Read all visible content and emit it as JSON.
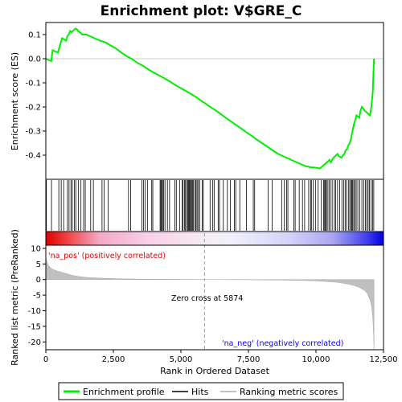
{
  "chart_data": {
    "type": "line",
    "title": "Enrichment plot: V$GRE_C",
    "es_panel": {
      "ylabel": "Enrichment score (ES)",
      "ylim": [
        -0.5,
        0.15
      ],
      "yticks": [
        0.1,
        0.0,
        -0.1,
        -0.2,
        -0.3,
        -0.4
      ],
      "ytick_labels": [
        "0.1",
        "0.0",
        "-0.1",
        "-0.2",
        "-0.3",
        "-0.4"
      ],
      "series": [
        {
          "name": "Enrichment profile",
          "color": "#00ee00",
          "x": [
            0,
            200,
            250,
            450,
            520,
            600,
            750,
            800,
            850,
            900,
            950,
            1050,
            1100,
            1150,
            1200,
            1350,
            1500,
            1600,
            1800,
            2000,
            2200,
            2400,
            2600,
            2800,
            3000,
            3200,
            3400,
            3600,
            3800,
            4000,
            4200,
            4400,
            4600,
            4800,
            5000,
            5200,
            5400,
            5600,
            5800,
            6000,
            6200,
            6400,
            6600,
            6800,
            7000,
            7200,
            7400,
            7600,
            7800,
            8000,
            8200,
            8400,
            8600,
            8800,
            9000,
            9200,
            9400,
            9600,
            9800,
            10000,
            10150,
            10250,
            10300,
            10350,
            10400,
            10450,
            10500,
            10550,
            10650,
            10700,
            10750,
            10800,
            10850,
            10950,
            11000,
            11050,
            11100,
            11150,
            11200,
            11250,
            11300,
            11350,
            11400,
            11450,
            11500,
            11600,
            11650,
            11700,
            11800,
            12000,
            12050,
            12100,
            12130,
            12150
          ],
          "y": [
            0.0,
            -0.01,
            0.035,
            0.025,
            0.055,
            0.085,
            0.075,
            0.095,
            0.1,
            0.115,
            0.11,
            0.12,
            0.125,
            0.122,
            0.115,
            0.1,
            0.1,
            0.095,
            0.085,
            0.075,
            0.068,
            0.055,
            0.042,
            0.025,
            0.01,
            -0.002,
            -0.018,
            -0.03,
            -0.045,
            -0.058,
            -0.07,
            -0.082,
            -0.095,
            -0.11,
            -0.122,
            -0.135,
            -0.148,
            -0.162,
            -0.178,
            -0.193,
            -0.208,
            -0.223,
            -0.24,
            -0.256,
            -0.272,
            -0.287,
            -0.303,
            -0.318,
            -0.335,
            -0.35,
            -0.365,
            -0.38,
            -0.395,
            -0.405,
            -0.415,
            -0.425,
            -0.435,
            -0.445,
            -0.45,
            -0.452,
            -0.455,
            -0.445,
            -0.44,
            -0.435,
            -0.43,
            -0.425,
            -0.42,
            -0.43,
            -0.41,
            -0.405,
            -0.4,
            -0.395,
            -0.405,
            -0.41,
            -0.4,
            -0.395,
            -0.38,
            -0.375,
            -0.36,
            -0.35,
            -0.33,
            -0.3,
            -0.275,
            -0.255,
            -0.235,
            -0.245,
            -0.215,
            -0.2,
            -0.215,
            -0.235,
            -0.2,
            -0.14,
            -0.05,
            0.0
          ]
        }
      ]
    },
    "hits": [
      20,
      210,
      480,
      570,
      660,
      800,
      860,
      930,
      980,
      1060,
      1110,
      1210,
      1300,
      1400,
      1460,
      1660,
      1760,
      2080,
      2160,
      2310,
      3060,
      3140,
      3560,
      3620,
      3680,
      3760,
      3920,
      3960,
      4230,
      4260,
      4290,
      4320,
      4360,
      4410,
      4500,
      4580,
      4780,
      4830,
      4950,
      5050,
      5080,
      5130,
      5170,
      5210,
      5250,
      5280,
      5310,
      5340,
      5380,
      5410,
      5440,
      5470,
      5530,
      5560,
      5600,
      5640,
      5700,
      5790,
      5830,
      6080,
      6180,
      6230,
      6380,
      6430,
      6570,
      6720,
      6830,
      6980,
      7030,
      7180,
      7430,
      7680,
      7730,
      8230,
      8380,
      8730,
      8830,
      8910,
      8960,
      9180,
      9230,
      9380,
      9500,
      9580,
      9730,
      9800,
      9830,
      9900,
      9980,
      10080,
      10200,
      10280,
      10320,
      10350,
      10380,
      10420,
      10480,
      10530,
      10600,
      10680,
      10730,
      10800,
      10880,
      10960,
      11030,
      11080,
      11130,
      11200,
      11250,
      11300,
      11330,
      11360,
      11400,
      11440,
      11490,
      11550,
      11620,
      11700,
      11770,
      11830,
      11880,
      11930,
      11980,
      12040,
      12100,
      12140
    ],
    "metric_panel": {
      "ylabel": "Ranked list metric (PreRanked)",
      "ylim": [
        -22.5,
        11
      ],
      "yticks": [
        10,
        5,
        0,
        -5,
        -10,
        -15,
        -20
      ],
      "ytick_labels": [
        "10",
        "5",
        "0",
        "-5",
        "-10",
        "-15",
        "-20"
      ],
      "x": [
        0,
        30,
        80,
        150,
        250,
        400,
        600,
        800,
        1000,
        1200,
        1500,
        2000,
        2500,
        3000,
        4000,
        5000,
        5874,
        7000,
        8000,
        9000,
        9500,
        10000,
        10500,
        10800,
        11000,
        11200,
        11400,
        11600,
        11800,
        11900,
        12000,
        12060,
        12100,
        12130,
        12150
      ],
      "values": [
        7.5,
        6,
        4.8,
        4.0,
        3.3,
        2.8,
        2.3,
        1.8,
        1.3,
        1.0,
        0.7,
        0.45,
        0.3,
        0.2,
        0.1,
        0.05,
        0.0,
        -0.05,
        -0.1,
        -0.2,
        -0.3,
        -0.45,
        -0.7,
        -0.9,
        -1.2,
        -1.5,
        -1.9,
        -2.5,
        -3.5,
        -4.5,
        -6.5,
        -8.5,
        -12,
        -17,
        -22.5
      ],
      "color": "#c0c0c0"
    },
    "xlabel": "Rank in Ordered Dataset",
    "xlim": [
      0,
      12150
    ],
    "xticks": [
      0,
      2500,
      5000,
      7500,
      10000,
      12500
    ],
    "xtick_labels": [
      "0",
      "2,500",
      "5,000",
      "7,500",
      "10,000",
      "12,500"
    ],
    "zero_cross": 5874,
    "annotations": {
      "pos": "'na_pos' (positively correlated)",
      "neg": "'na_neg' (negatively correlated)",
      "zero": "Zero cross at 5874"
    },
    "legend": {
      "placement": "bottom",
      "items": [
        "Enrichment profile",
        "Hits",
        "Ranking metric scores"
      ]
    },
    "colors": {
      "pos": "#e00000",
      "neg": "#0000ff",
      "mid": "#ffffff",
      "profile": "#00ee00",
      "metric": "#c0c0c0"
    }
  }
}
